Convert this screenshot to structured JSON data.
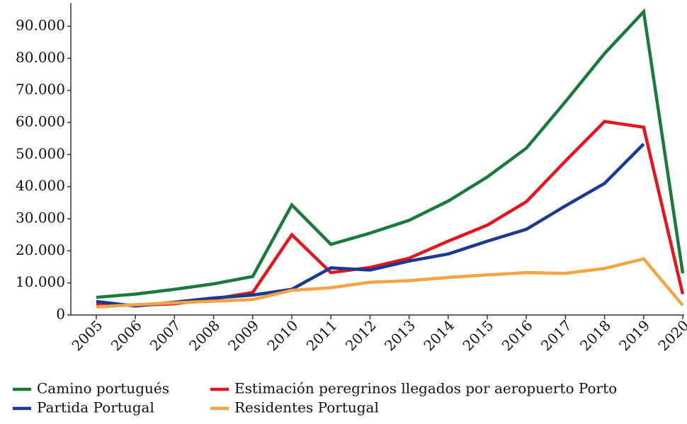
{
  "chart_data": {
    "type": "line",
    "categories": [
      "2005",
      "2006",
      "2007",
      "2008",
      "2009",
      "2010",
      "2011",
      "2012",
      "2013",
      "2014",
      "2015",
      "2016",
      "2017",
      "2018",
      "2019",
      "2020"
    ],
    "series": [
      {
        "name": "Camino portugués",
        "color": "#1a7a3c",
        "values": [
          5500,
          6500,
          8000,
          9700,
          12000,
          34300,
          22000,
          25500,
          29500,
          35500,
          43000,
          52000,
          66500,
          81500,
          94500,
          13000
        ]
      },
      {
        "name": "Estimación peregrinos llegados por aeropuerto Porto",
        "color": "#e8141b",
        "values": [
          3500,
          3000,
          3500,
          5000,
          7000,
          25000,
          13200,
          14800,
          17700,
          23000,
          28000,
          35300,
          48000,
          60300,
          58500,
          6500
        ]
      },
      {
        "name": "Partida Portugal",
        "color": "#1a3a8f",
        "values": [
          4200,
          2800,
          4000,
          5300,
          6200,
          8000,
          14700,
          14000,
          16800,
          19000,
          23000,
          26700,
          34000,
          41000,
          53300,
          null
        ]
      },
      {
        "name": "Residentes Portugal",
        "color": "#f4a442",
        "values": [
          2500,
          3200,
          3800,
          4300,
          4800,
          7700,
          8500,
          10200,
          10700,
          11700,
          12500,
          13200,
          13000,
          14500,
          17500,
          3000
        ]
      }
    ],
    "ylim": [
      0,
      95000
    ],
    "yticks": [
      0,
      {
        "value": 10000,
        "label": "10.000"
      },
      {
        "value": 20000,
        "label": "20.000"
      },
      {
        "value": 30000,
        "label": "30.000"
      },
      {
        "value": 40000,
        "label": "40.000"
      },
      {
        "value": 50000,
        "label": "50.000"
      },
      {
        "value": 60000,
        "label": "60.000"
      },
      {
        "value": 70000,
        "label": "70.000"
      },
      {
        "value": 80000,
        "label": "80.000"
      },
      {
        "value": 90000,
        "label": "90.000"
      }
    ],
    "grid": false
  }
}
